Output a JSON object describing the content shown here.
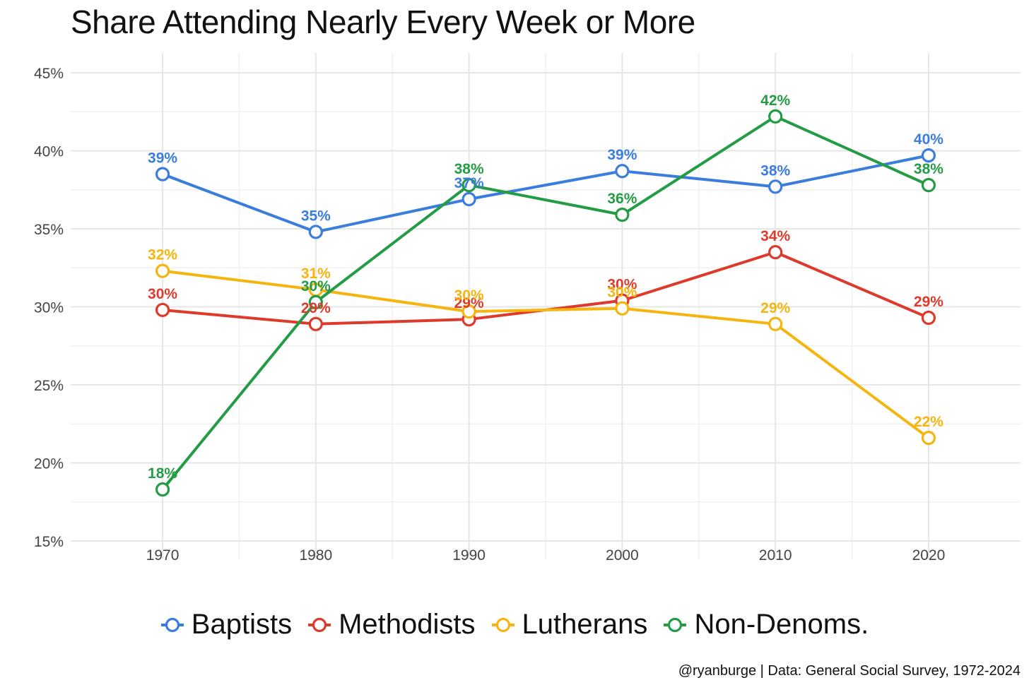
{
  "chart_data": {
    "type": "line",
    "title": "Share Attending Nearly Every Week or More",
    "xlabel": "",
    "ylabel": "",
    "x": [
      1970,
      1980,
      1990,
      2000,
      2010,
      2020
    ],
    "x_tick_labels": [
      "1970",
      "1980",
      "1990",
      "2000",
      "2010",
      "2020"
    ],
    "ylim": [
      15,
      45
    ],
    "y_ticks": [
      15,
      20,
      25,
      30,
      35,
      40,
      45
    ],
    "y_tick_labels": [
      "15%",
      "20%",
      "25%",
      "30%",
      "35%",
      "40%",
      "45%"
    ],
    "grid": true,
    "legend_position": "bottom",
    "series": [
      {
        "name": "Baptists",
        "color": "#3B7DDD",
        "values": [
          38.5,
          34.8,
          36.9,
          38.7,
          37.7,
          39.7
        ],
        "labels": [
          "39%",
          "35%",
          "37%",
          "39%",
          "38%",
          "40%"
        ]
      },
      {
        "name": "Methodists",
        "color": "#DD3A2C",
        "values": [
          29.8,
          28.9,
          29.2,
          30.4,
          33.5,
          29.3
        ],
        "labels": [
          "30%",
          "29%",
          "29%",
          "30%",
          "34%",
          "29%"
        ]
      },
      {
        "name": "Lutherans",
        "color": "#F5B50E",
        "values": [
          32.3,
          31.1,
          29.7,
          29.9,
          28.9,
          21.6
        ],
        "labels": [
          "32%",
          "31%",
          "30%",
          "30%",
          "29%",
          "22%"
        ]
      },
      {
        "name": "Non-Denoms.",
        "color": "#249C45",
        "values": [
          18.3,
          30.3,
          37.8,
          35.9,
          42.2,
          37.8
        ],
        "labels": [
          "18%",
          "30%",
          "38%",
          "36%",
          "42%",
          "38%"
        ]
      }
    ]
  },
  "caption": "@ryanburge | Data: General Social Survey, 1972-2024"
}
